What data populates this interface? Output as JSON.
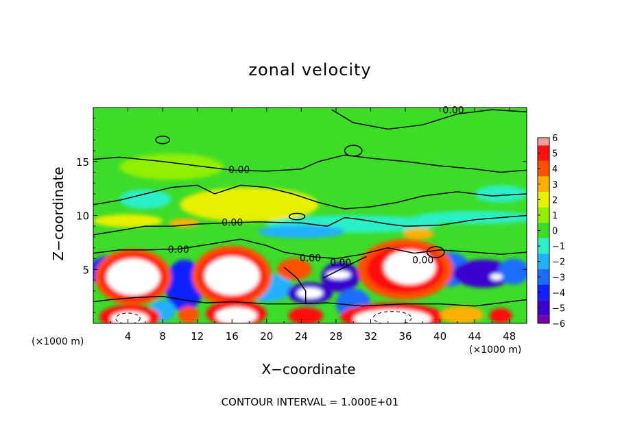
{
  "chart_data": {
    "type": "heatmap",
    "title": "zonal velocity",
    "xlabel": "X−coordinate",
    "ylabel": "Z−coordinate",
    "x_unit_left": "(×1000 m)",
    "x_unit_right": "(×1000 m)",
    "xlim": [
      0,
      50
    ],
    "ylim": [
      0,
      20
    ],
    "x_ticks": [
      "4",
      "8",
      "12",
      "16",
      "20",
      "24",
      "28",
      "32",
      "36",
      "40",
      "44",
      "48"
    ],
    "y_ticks": [
      "5",
      "10",
      "15"
    ],
    "colorbar": {
      "ticks": [
        "6",
        "5",
        "4",
        "3",
        "2",
        "1",
        "0",
        "−1",
        "−2",
        "−3",
        "−4",
        "−5",
        "−6"
      ],
      "range": [
        -6,
        6
      ],
      "colors": [
        "#7a00a8",
        "#3a00d0",
        "#1020ff",
        "#1a6cff",
        "#22b0ff",
        "#2cf0c8",
        "#3cdc28",
        "#90f000",
        "#e8f000",
        "#ffb000",
        "#ff5000",
        "#ff1010",
        "#f08888"
      ]
    },
    "contour_labels": [
      {
        "text": "0.00",
        "x": 40.3,
        "z": 19.7
      },
      {
        "text": "0.00",
        "x": 15.6,
        "z": 14.2
      },
      {
        "text": "0.00",
        "x": 14.8,
        "z": 9.3
      },
      {
        "text": "0.00",
        "x": 8.6,
        "z": 6.8
      },
      {
        "text": "0.00",
        "x": 23.8,
        "z": 6.0
      },
      {
        "text": "0.00",
        "x": 27.3,
        "z": 5.6
      },
      {
        "text": "0.00",
        "x": 36.8,
        "z": 5.8
      }
    ],
    "contour_interval_text": "CONTOUR INTERVAL =  1.000E+01",
    "features": [
      {
        "kind": "positive-max",
        "x": 4.6,
        "z": 4.3
      },
      {
        "kind": "positive-max",
        "x": 16.0,
        "z": 4.3
      },
      {
        "kind": "positive-max",
        "x": 36.5,
        "z": 5.0
      },
      {
        "kind": "positive-max",
        "x": 34.5,
        "z": 0.6
      },
      {
        "kind": "positive-max",
        "x": 16.5,
        "z": 1.0
      },
      {
        "kind": "positive-max",
        "x": 4.0,
        "z": 0.7
      },
      {
        "kind": "negative-min",
        "x": 24.8,
        "z": 2.8
      },
      {
        "kind": "negative-min",
        "x": 28.5,
        "z": 4.3
      },
      {
        "kind": "negative-min",
        "x": 10.5,
        "z": 3.4
      },
      {
        "kind": "negative-min",
        "x": 44.5,
        "z": 4.5
      },
      {
        "kind": "negative-min",
        "x": 46.5,
        "z": 3.8
      },
      {
        "kind": "positive-weak",
        "x": 18.0,
        "z": 11.0
      },
      {
        "kind": "positive-weak",
        "x": 23.0,
        "z": 5.5
      }
    ]
  }
}
